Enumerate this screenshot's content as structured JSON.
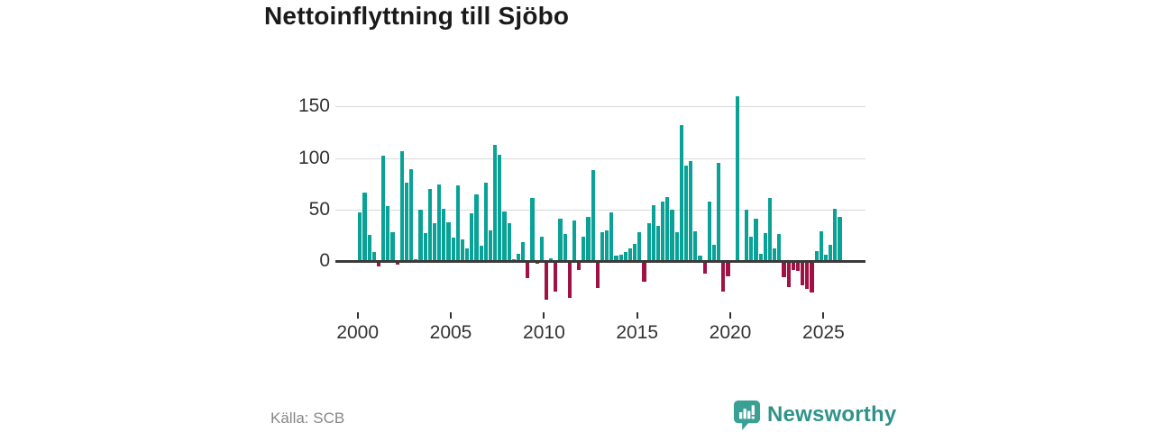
{
  "title": "Nettoinflyttning till Sjöbo",
  "footer": {
    "source": "Källa: SCB",
    "brand": "Newsworthy"
  },
  "icons": {
    "logo": "newsworthy-speech-bubble-barchart"
  },
  "colors": {
    "positive_bar": "#0aa296",
    "negative_bar": "#a01243",
    "axis": "#3a3a3a",
    "gridline": "#d9d9d9",
    "brand_teal": "#2f9389"
  },
  "chart_data": {
    "type": "bar",
    "title": "Nettoinflyttning till Sjöbo",
    "xlabel": "",
    "ylabel": "",
    "frequency": "quarterly",
    "start_year": 2000,
    "start_quarter": 1,
    "ylim": [
      -45,
      170
    ],
    "grid": "horizontal",
    "y_ticks": [
      0,
      50,
      100,
      150
    ],
    "x_ticks": [
      "2000",
      "2005",
      "2010",
      "2015",
      "2020",
      "2025"
    ],
    "values": [
      47,
      66,
      25,
      9,
      -4,
      102,
      53,
      28,
      -3,
      107,
      76,
      89,
      2,
      50,
      27,
      70,
      37,
      74,
      51,
      38,
      23,
      73,
      21,
      12,
      46,
      65,
      15,
      76,
      30,
      113,
      103,
      48,
      37,
      2,
      7,
      18,
      -16,
      61,
      -2,
      24,
      -37,
      3,
      -29,
      41,
      26,
      -35,
      39,
      -8,
      24,
      43,
      88,
      -25,
      28,
      30,
      47,
      5,
      6,
      9,
      12,
      17,
      28,
      -19,
      37,
      54,
      34,
      58,
      62,
      50,
      28,
      132,
      93,
      97,
      29,
      5,
      -11,
      58,
      16,
      95,
      -29,
      -14,
      0,
      160,
      0,
      50,
      24,
      41,
      7,
      27,
      61,
      12,
      26,
      -15,
      -24,
      -8,
      -9,
      -23,
      -26,
      -30,
      10,
      29,
      6,
      16,
      51,
      43
    ]
  }
}
